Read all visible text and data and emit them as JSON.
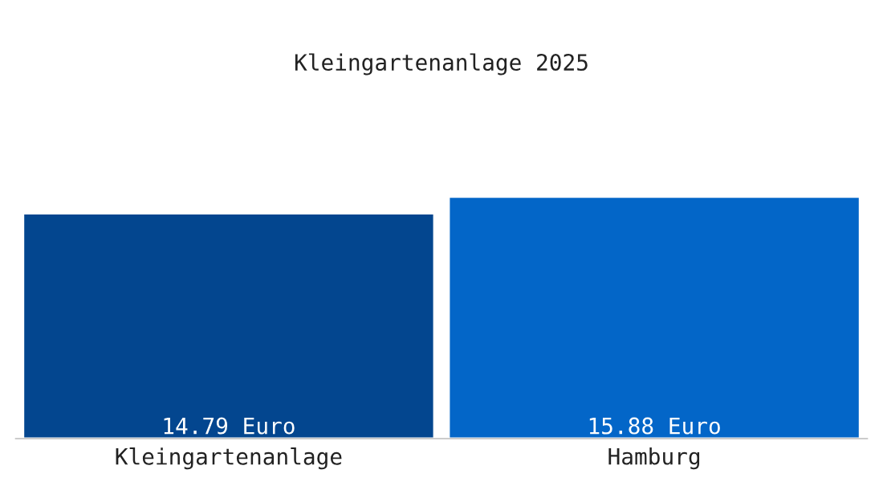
{
  "chart_data": {
    "type": "bar",
    "title": "Kleingartenanlage 2025",
    "categories": [
      "Kleingartenanlage",
      "Hamburg"
    ],
    "values": [
      14.79,
      15.88
    ],
    "colors": [
      "#03468f",
      "#0366c8"
    ],
    "value_labels": [
      "14.79 Euro",
      "15.88 Euro"
    ],
    "grid": false,
    "legend": false
  }
}
